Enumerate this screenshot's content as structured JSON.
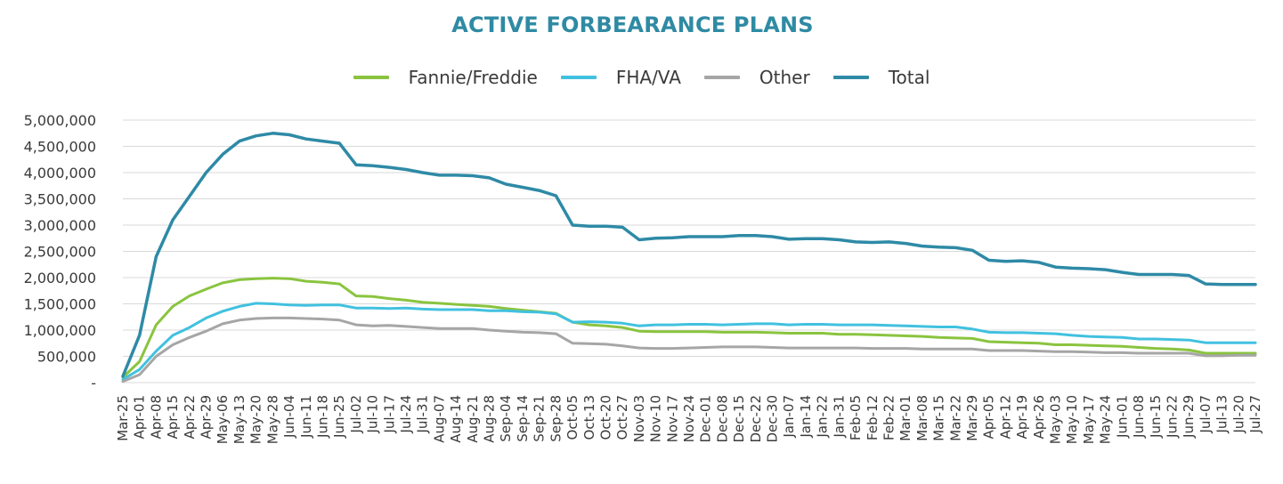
{
  "chart_data": {
    "type": "line",
    "title": "ACTIVE FORBEARANCE PLANS",
    "xlabel": "",
    "ylabel": "",
    "ylim": [
      0,
      5000000
    ],
    "y_ticks": [
      {
        "value": 0,
        "label": "-"
      },
      {
        "value": 500000,
        "label": "500,000"
      },
      {
        "value": 1000000,
        "label": "1,000,000"
      },
      {
        "value": 1500000,
        "label": "1,500,000"
      },
      {
        "value": 2000000,
        "label": "2,000,000"
      },
      {
        "value": 2500000,
        "label": "2,500,000"
      },
      {
        "value": 3000000,
        "label": "3,000,000"
      },
      {
        "value": 3500000,
        "label": "3,500,000"
      },
      {
        "value": 4000000,
        "label": "4,000,000"
      },
      {
        "value": 4500000,
        "label": "4,500,000"
      },
      {
        "value": 5000000,
        "label": "5,000,000"
      }
    ],
    "grid": true,
    "legend_position": "top-center",
    "categories": [
      "Mar-25",
      "Apr-01",
      "Apr-08",
      "Apr-15",
      "Apr-22",
      "Apr-29",
      "May-06",
      "May-13",
      "May-20",
      "May-28",
      "Jun-04",
      "Jun-11",
      "Jun-18",
      "Jun-25",
      "Jul-02",
      "Jul-10",
      "Jul-17",
      "Jul-24",
      "Jul-31",
      "Aug-07",
      "Aug-14",
      "Aug-21",
      "Aug-28",
      "Sep-04",
      "Sep-14",
      "Sep-21",
      "Sep-28",
      "Oct-05",
      "Oct-13",
      "Oct-20",
      "Oct-27",
      "Nov-03",
      "Nov-10",
      "Nov-17",
      "Nov-24",
      "Dec-01",
      "Dec-08",
      "Dec-15",
      "Dec-22",
      "Dec-30",
      "Jan-07",
      "Jan-14",
      "Jan-22",
      "Jan-31",
      "Feb-05",
      "Feb-12",
      "Feb-22",
      "Mar-01",
      "Mar-08",
      "Mar-15",
      "Mar-22",
      "Mar-29",
      "Apr-05",
      "Apr-12",
      "Apr-19",
      "Apr-26",
      "May-03",
      "May-10",
      "May-17",
      "May-24",
      "Jun-01",
      "Jun-08",
      "Jun-15",
      "Jun-22",
      "Jun-29",
      "Jul-07",
      "Jul-13",
      "Jul-20",
      "Jul-27"
    ],
    "series": [
      {
        "name": "Fannie/Freddie",
        "color": "#8ac43f",
        "values": [
          100000,
          400000,
          1100000,
          1450000,
          1650000,
          1780000,
          1900000,
          1960000,
          1980000,
          1990000,
          1980000,
          1930000,
          1910000,
          1880000,
          1650000,
          1640000,
          1600000,
          1570000,
          1530000,
          1510000,
          1490000,
          1470000,
          1450000,
          1410000,
          1380000,
          1350000,
          1320000,
          1150000,
          1100000,
          1080000,
          1050000,
          980000,
          970000,
          970000,
          970000,
          970000,
          960000,
          960000,
          960000,
          950000,
          940000,
          940000,
          940000,
          920000,
          920000,
          910000,
          900000,
          890000,
          880000,
          860000,
          850000,
          840000,
          780000,
          770000,
          760000,
          750000,
          720000,
          720000,
          710000,
          700000,
          690000,
          670000,
          650000,
          640000,
          620000,
          560000,
          560000,
          560000,
          560000
        ]
      },
      {
        "name": "FHA/VA",
        "color": "#41c1df",
        "values": [
          60000,
          250000,
          600000,
          900000,
          1050000,
          1230000,
          1360000,
          1450000,
          1510000,
          1500000,
          1480000,
          1470000,
          1480000,
          1480000,
          1420000,
          1420000,
          1410000,
          1420000,
          1400000,
          1390000,
          1390000,
          1390000,
          1370000,
          1370000,
          1350000,
          1340000,
          1310000,
          1150000,
          1160000,
          1150000,
          1130000,
          1080000,
          1100000,
          1100000,
          1110000,
          1110000,
          1100000,
          1110000,
          1120000,
          1120000,
          1100000,
          1110000,
          1110000,
          1100000,
          1100000,
          1100000,
          1090000,
          1080000,
          1070000,
          1060000,
          1060000,
          1020000,
          960000,
          950000,
          950000,
          940000,
          930000,
          900000,
          880000,
          870000,
          860000,
          830000,
          830000,
          820000,
          810000,
          760000,
          760000,
          760000,
          760000
        ]
      },
      {
        "name": "Other",
        "color": "#a6a6a6",
        "values": [
          20000,
          150000,
          500000,
          720000,
          860000,
          980000,
          1120000,
          1190000,
          1220000,
          1230000,
          1230000,
          1220000,
          1210000,
          1190000,
          1100000,
          1080000,
          1090000,
          1070000,
          1050000,
          1030000,
          1030000,
          1030000,
          1000000,
          980000,
          960000,
          950000,
          930000,
          750000,
          740000,
          730000,
          700000,
          660000,
          650000,
          650000,
          660000,
          670000,
          680000,
          680000,
          680000,
          670000,
          660000,
          660000,
          660000,
          660000,
          660000,
          650000,
          650000,
          650000,
          640000,
          640000,
          640000,
          640000,
          610000,
          610000,
          610000,
          600000,
          590000,
          590000,
          580000,
          570000,
          570000,
          560000,
          560000,
          560000,
          560000,
          510000,
          510000,
          520000,
          520000
        ]
      },
      {
        "name": "Total",
        "color": "#2e8aa6",
        "values": [
          120000,
          900000,
          2400000,
          3100000,
          3550000,
          4000000,
          4350000,
          4600000,
          4700000,
          4750000,
          4720000,
          4640000,
          4600000,
          4560000,
          4150000,
          4130000,
          4100000,
          4060000,
          4000000,
          3950000,
          3950000,
          3940000,
          3900000,
          3780000,
          3720000,
          3660000,
          3560000,
          3000000,
          2980000,
          2980000,
          2960000,
          2720000,
          2750000,
          2760000,
          2780000,
          2780000,
          2780000,
          2800000,
          2800000,
          2780000,
          2730000,
          2740000,
          2740000,
          2720000,
          2680000,
          2670000,
          2680000,
          2650000,
          2600000,
          2580000,
          2570000,
          2520000,
          2330000,
          2310000,
          2320000,
          2290000,
          2200000,
          2180000,
          2170000,
          2150000,
          2100000,
          2060000,
          2060000,
          2060000,
          2040000,
          1880000,
          1870000,
          1870000,
          1870000
        ]
      }
    ]
  }
}
